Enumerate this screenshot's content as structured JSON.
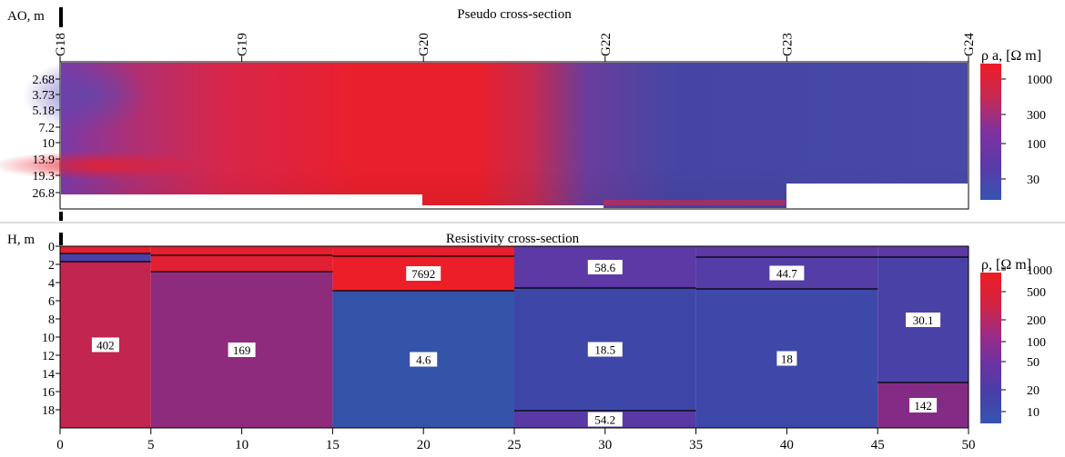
{
  "pseudo": {
    "title": "Pseudo cross-section",
    "ylabel": "AO, m",
    "legend_label": "ρ a, [Ω m]",
    "stations": [
      "G18",
      "G19",
      "G20",
      "G22",
      "G23",
      "G24"
    ],
    "depth_ticks": [
      "2.68",
      "3.73",
      "5.18",
      "7.2",
      "10",
      "13.9",
      "19.3",
      "26.8"
    ],
    "colorbar_ticks": [
      "1000",
      "300",
      "100",
      "30"
    ]
  },
  "resistivity": {
    "title": "Resistivity cross-section",
    "ylabel": "H, m",
    "legend_label": "ρ, [Ω m]",
    "colorbar_ticks": [
      "1000",
      "500",
      "200",
      "100",
      "50",
      "20",
      "10"
    ],
    "depth_ticks": [
      "0",
      "2",
      "4",
      "6",
      "8",
      "10",
      "12",
      "14",
      "16",
      "18"
    ],
    "x_ticks": [
      "0",
      "5",
      "10",
      "15",
      "20",
      "25",
      "30",
      "35",
      "40",
      "45",
      "50"
    ],
    "layer_labels": [
      "402",
      "169",
      "7692",
      "4.6",
      "58.6",
      "18.5",
      "54.2",
      "44.7",
      "18",
      "30.1",
      "142"
    ]
  },
  "chart_data": [
    {
      "type": "heatmap",
      "title": "Pseudo cross-section",
      "ylabel": "AO, m",
      "x": [
        "G18",
        "G19",
        "G20",
        "G22",
        "G23",
        "G24"
      ],
      "y_ticks": [
        2.68,
        3.73,
        5.18,
        7.2,
        10,
        13.9,
        19.3,
        26.8
      ],
      "colorbar_label": "ρ a, [Ω m]",
      "colorbar_ticks": [
        1000,
        300,
        100,
        30
      ],
      "colorbar_scale": "log",
      "colors": {
        "high": "#ed1c24",
        "low": "#3553a9"
      }
    },
    {
      "type": "heatmap",
      "title": "Resistivity cross-section",
      "xlabel": "",
      "ylabel": "H, m",
      "xlim": [
        0,
        50
      ],
      "ylim": [
        0,
        20
      ],
      "colorbar_label": "ρ, [Ω m]",
      "colorbar_ticks": [
        1000,
        500,
        200,
        100,
        50,
        20,
        10
      ],
      "colorbar_scale": "log",
      "layers": [
        {
          "x": [
            0,
            5
          ],
          "top": 0,
          "bottom": 0.8,
          "rho": 2000
        },
        {
          "x": [
            0,
            5
          ],
          "top": 0.8,
          "bottom": 1.7,
          "rho": 30
        },
        {
          "x": [
            0,
            5
          ],
          "top": 1.7,
          "bottom": 20,
          "rho": 402,
          "label": "402"
        },
        {
          "x": [
            5,
            15
          ],
          "top": 0,
          "bottom": 1,
          "rho": 2000
        },
        {
          "x": [
            5,
            15
          ],
          "top": 1,
          "bottom": 2.8,
          "rho": 1500
        },
        {
          "x": [
            5,
            15
          ],
          "top": 2.8,
          "bottom": 20,
          "rho": 169,
          "label": "169"
        },
        {
          "x": [
            15,
            25
          ],
          "top": 0,
          "bottom": 1.1,
          "rho": 2000
        },
        {
          "x": [
            15,
            25
          ],
          "top": 1.1,
          "bottom": 4.9,
          "rho": 7692,
          "label": "7692"
        },
        {
          "x": [
            15,
            25
          ],
          "top": 4.9,
          "bottom": 20,
          "rho": 4.6,
          "label": "4.6"
        },
        {
          "x": [
            25,
            35
          ],
          "top": 0,
          "bottom": 4.6,
          "rho": 58.6,
          "label": "58.6"
        },
        {
          "x": [
            25,
            35
          ],
          "top": 4.6,
          "bottom": 18.1,
          "rho": 18.5,
          "label": "18.5"
        },
        {
          "x": [
            25,
            35
          ],
          "top": 18.1,
          "bottom": 20,
          "rho": 54.2,
          "label": "54.2"
        },
        {
          "x": [
            35,
            45
          ],
          "top": 0,
          "bottom": 1.2,
          "rho": 60
        },
        {
          "x": [
            35,
            45
          ],
          "top": 1.2,
          "bottom": 4.7,
          "rho": 44.7,
          "label": "44.7"
        },
        {
          "x": [
            35,
            45
          ],
          "top": 4.7,
          "bottom": 20,
          "rho": 18,
          "label": "18"
        },
        {
          "x": [
            45,
            50
          ],
          "top": 0,
          "bottom": 1.2,
          "rho": 60
        },
        {
          "x": [
            45,
            50
          ],
          "top": 1.2,
          "bottom": 15,
          "rho": 30.1,
          "label": "30.1"
        },
        {
          "x": [
            45,
            50
          ],
          "top": 15,
          "bottom": 20,
          "rho": 142,
          "label": "142"
        }
      ]
    }
  ]
}
